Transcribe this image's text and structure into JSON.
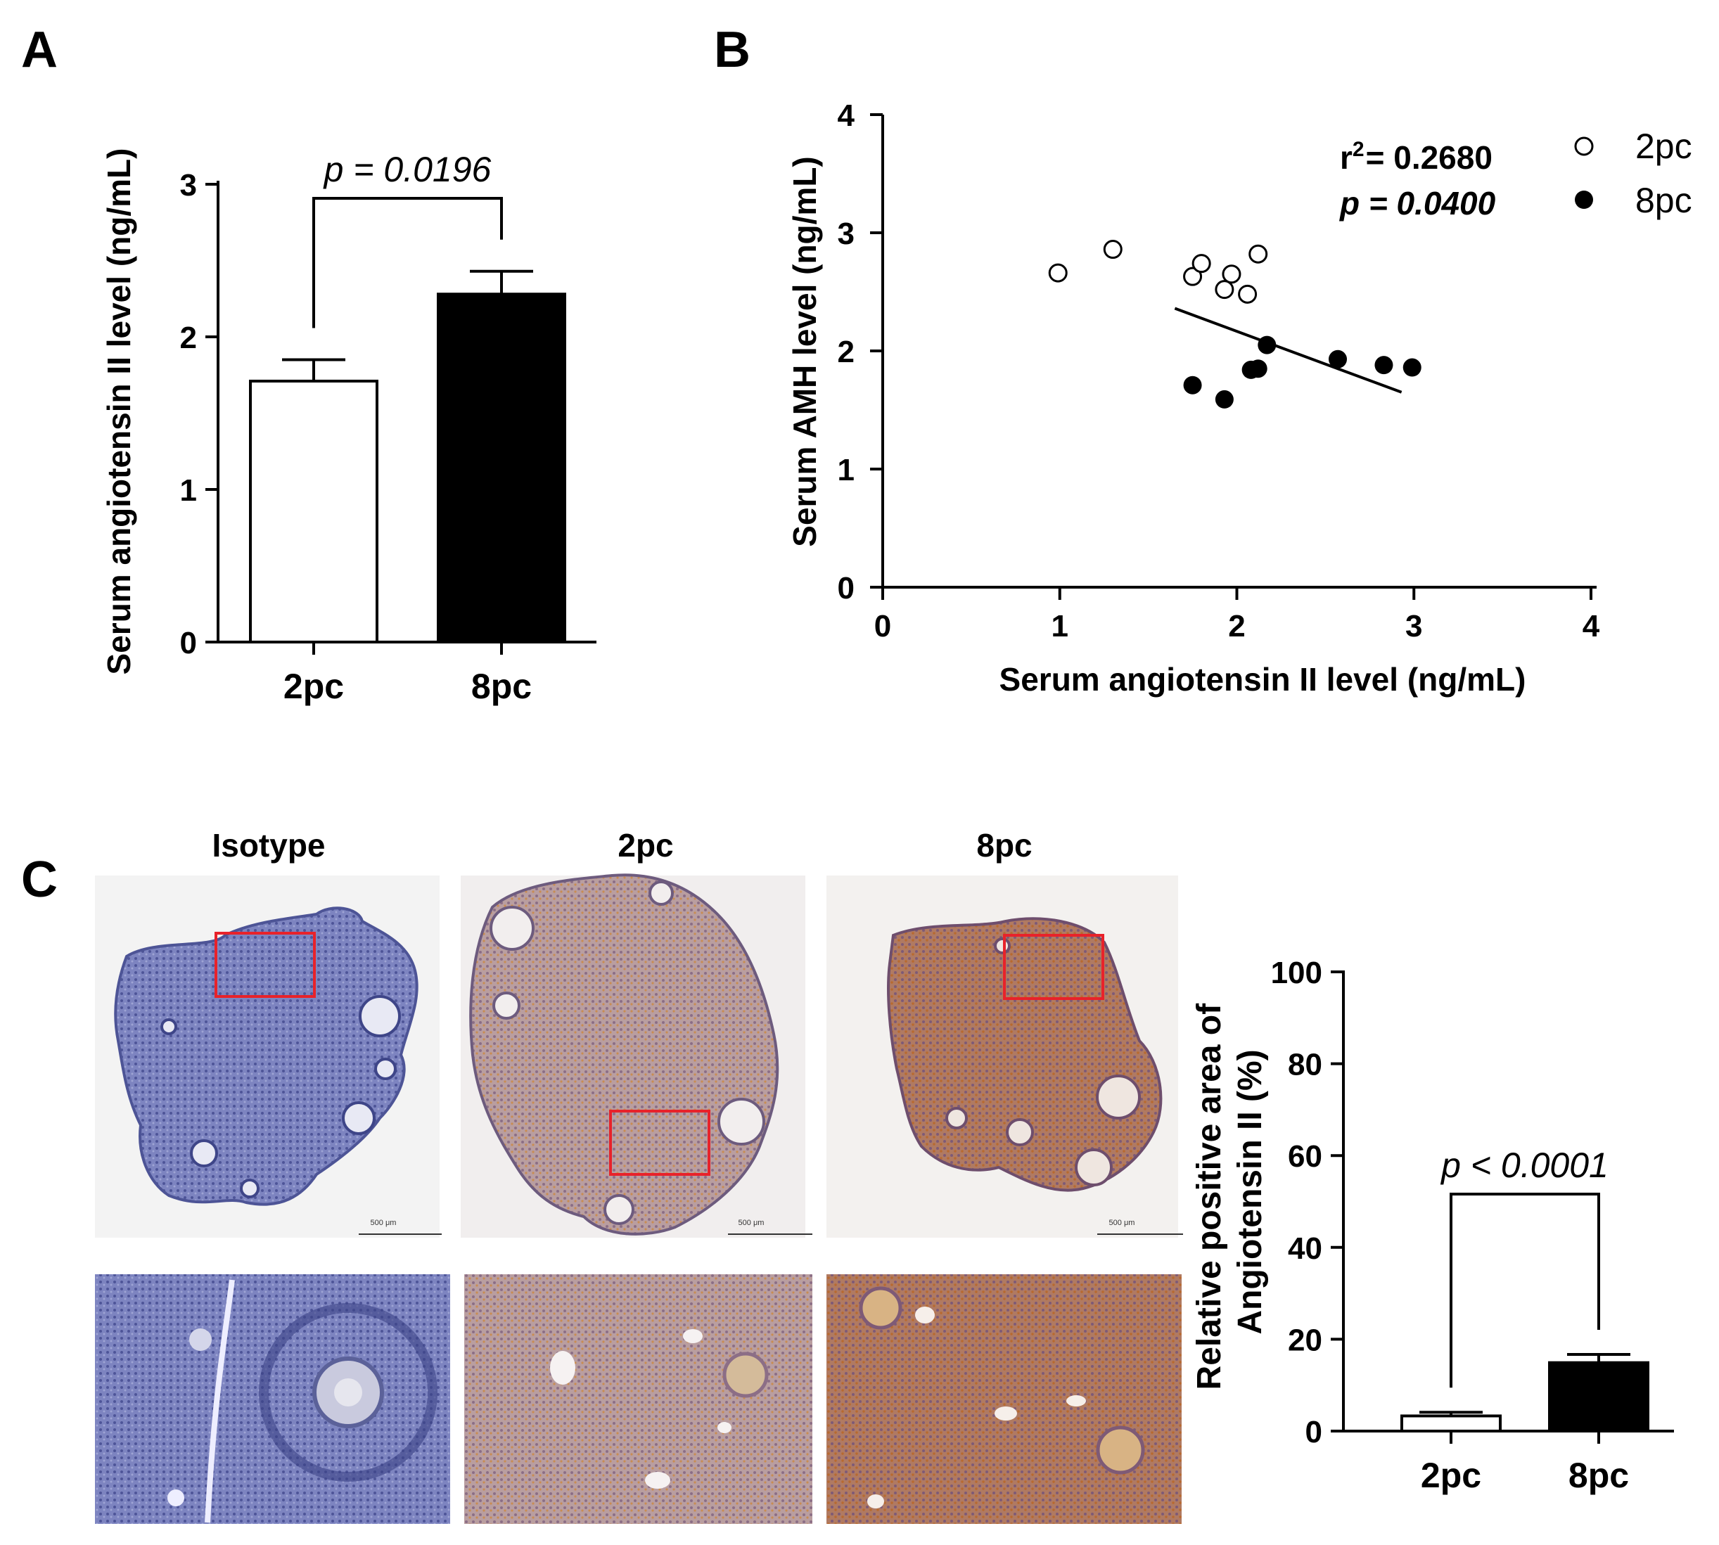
{
  "panels": {
    "A": {
      "letter": "A"
    },
    "B": {
      "letter": "B"
    },
    "C": {
      "letter": "C"
    }
  },
  "micrographs": {
    "titles": [
      "Isotype",
      "2pc",
      "8pc"
    ],
    "scalebar_label": "500 μm"
  },
  "colors": {
    "isotype_stain": "#7f86c2",
    "pc2_stain": "#b79a9a",
    "pc8_stain": "#b27e63",
    "roi_box": "#e8222a",
    "bar_8pc": "#000000",
    "bar_2pc": "#ffffff"
  },
  "chart_data": [
    {
      "panel": "A",
      "type": "bar",
      "categories": [
        "2pc",
        "8pc"
      ],
      "values": [
        1.71,
        2.28
      ],
      "errors": [
        0.14,
        0.15
      ],
      "fills": [
        "white",
        "black"
      ],
      "ylabel": "Serum angiotensin II level (ng/mL)",
      "ylim": [
        0,
        3
      ],
      "yticks": [
        "0",
        "1",
        "2",
        "3"
      ],
      "annotation": "p = 0.0196"
    },
    {
      "panel": "B",
      "type": "scatter",
      "xlabel": "Serum angiotensin II level (ng/mL)",
      "ylabel": "Serum AMH level (ng/mL)",
      "xlim": [
        0,
        4
      ],
      "ylim": [
        0,
        4
      ],
      "xticks": [
        "0",
        "1",
        "2",
        "3",
        "4"
      ],
      "yticks": [
        "0",
        "1",
        "2",
        "3",
        "4"
      ],
      "legend_position": "top-right",
      "series": [
        {
          "name": "2pc",
          "marker": "open-circle",
          "points": [
            [
              0.99,
              2.66
            ],
            [
              1.3,
              2.86
            ],
            [
              1.75,
              2.63
            ],
            [
              1.8,
              2.74
            ],
            [
              1.93,
              2.52
            ],
            [
              1.97,
              2.65
            ],
            [
              2.06,
              2.48
            ],
            [
              2.12,
              2.82
            ]
          ]
        },
        {
          "name": "8pc",
          "marker": "filled-circle",
          "points": [
            [
              1.75,
              1.71
            ],
            [
              1.93,
              1.59
            ],
            [
              2.08,
              1.84
            ],
            [
              2.12,
              1.85
            ],
            [
              2.17,
              2.05
            ],
            [
              2.57,
              1.93
            ],
            [
              2.83,
              1.88
            ],
            [
              2.99,
              1.86
            ]
          ]
        }
      ],
      "regression": {
        "x": [
          1.65,
          2.93
        ],
        "y": [
          2.36,
          1.65
        ]
      },
      "stats": {
        "r2_prefix": "r",
        "r2_sup": "2",
        "r2_value": "= 0.2680",
        "p_text": "p = 0.0400"
      }
    },
    {
      "panel": "C",
      "type": "bar",
      "categories": [
        "2pc",
        "8pc"
      ],
      "values": [
        3.3,
        14.9
      ],
      "errors": [
        0.8,
        1.8
      ],
      "fills": [
        "white",
        "black"
      ],
      "ylabel_lines": [
        "Relative positive area of",
        "Angiotensin II (%)"
      ],
      "ylim": [
        0,
        100
      ],
      "yticks": [
        "0",
        "20",
        "40",
        "60",
        "80",
        "100"
      ],
      "annotation": "p < 0.0001"
    }
  ]
}
